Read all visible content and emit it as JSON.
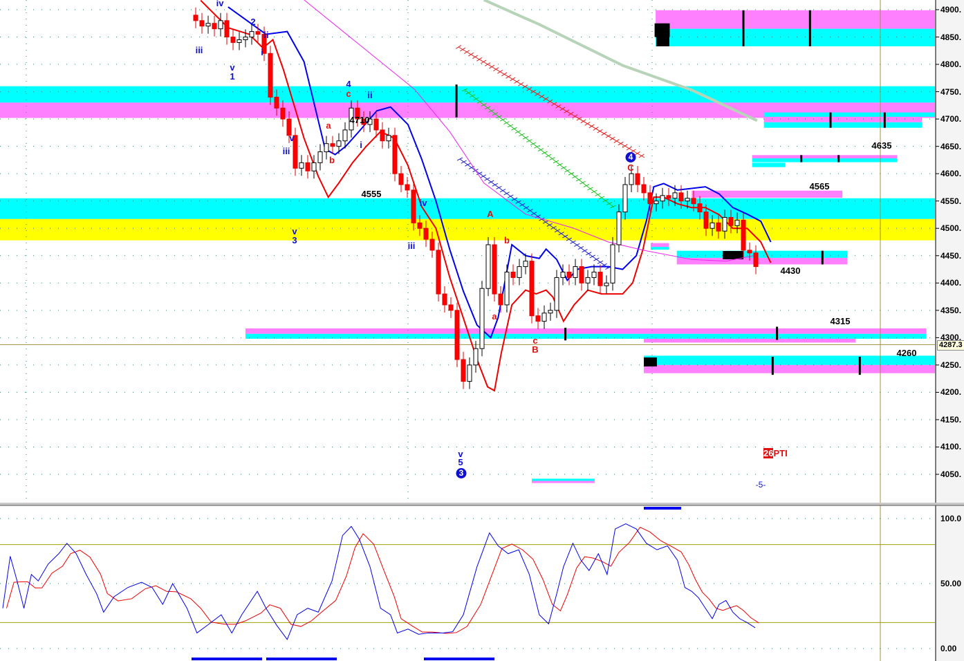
{
  "chart_data": {
    "type": "candlestick",
    "ylim": [
      4000,
      4920
    ],
    "y_ticks": [
      "4900.",
      "4850.",
      "4800.",
      "4750.",
      "4700.",
      "4650.",
      "4600.",
      "4550.",
      "4500.",
      "4450.",
      "4400.",
      "4350.",
      "4300.",
      "4250.",
      "4200.",
      "4150.",
      "4100.",
      "4050."
    ],
    "y_tick_values": [
      4900,
      4850,
      4800,
      4750,
      4700,
      4650,
      4600,
      4550,
      4500,
      4450,
      4400,
      4350,
      4300,
      4250,
      4200,
      4150,
      4100,
      4050
    ],
    "current_price_label": "4287.3",
    "current_price": 4287.3,
    "first_bar": 31,
    "closes": [
      4880,
      4870,
      4875,
      4865,
      4880,
      4850,
      4840,
      4845,
      4850,
      4860,
      4855,
      4820,
      4740,
      4720,
      4700,
      4670,
      4610,
      4620,
      4605,
      4620,
      4640,
      4655,
      4650,
      4660,
      4680,
      4720,
      4700,
      4690,
      4700,
      4680,
      4660,
      4670,
      4600,
      4580,
      4570,
      4510,
      4500,
      4480,
      4460,
      4380,
      4360,
      4350,
      4260,
      4220,
      4250,
      4280,
      4390,
      4470,
      4380,
      4360,
      4420,
      4410,
      4430,
      4440,
      4340,
      4330,
      4345,
      4350,
      4410,
      4420,
      4410,
      4430,
      4400,
      4410,
      4420,
      4395,
      4400,
      4470,
      4530,
      4580,
      4600,
      4580,
      4565,
      4545,
      4550,
      4560,
      4555,
      4565,
      4550,
      4555,
      4545,
      4530,
      4500,
      4510,
      4495,
      4520,
      4505,
      4515,
      4460,
      4455,
      4430
    ],
    "lines": [
      {
        "color": "#0000ee",
        "points": [
          [
            36.2,
            4905
          ],
          [
            42.3,
            4855
          ],
          [
            45.7,
            4860
          ],
          [
            48.4,
            4805
          ],
          [
            51.8,
            4645
          ],
          [
            53.4,
            4635
          ],
          [
            55.1,
            4650
          ],
          [
            57.3,
            4678
          ],
          [
            60.1,
            4715
          ],
          [
            62.3,
            4722
          ],
          [
            65.1,
            4690
          ],
          [
            67.3,
            4627
          ],
          [
            69.6,
            4550
          ],
          [
            71.8,
            4462
          ],
          [
            74,
            4385
          ],
          [
            76.2,
            4323
          ],
          [
            78.4,
            4300
          ],
          [
            79.6,
            4337
          ],
          [
            81.8,
            4470
          ],
          [
            84,
            4450
          ],
          [
            86.2,
            4445
          ],
          [
            87.3,
            4462
          ],
          [
            89,
            4443
          ],
          [
            90.7,
            4405
          ],
          [
            92.3,
            4425
          ],
          [
            94.6,
            4430
          ],
          [
            97.3,
            4430
          ],
          [
            99.6,
            4425
          ],
          [
            101.8,
            4450
          ],
          [
            103.4,
            4513
          ],
          [
            104.6,
            4576
          ],
          [
            106.2,
            4582
          ],
          [
            108.4,
            4570
          ],
          [
            110.7,
            4573
          ],
          [
            112.9,
            4576
          ],
          [
            115.1,
            4563
          ],
          [
            117.3,
            4538
          ],
          [
            119.6,
            4526
          ],
          [
            121.8,
            4513
          ],
          [
            123.4,
            4475
          ]
        ]
      },
      {
        "color": "#ee0000",
        "points": [
          [
            31.8,
            4917
          ],
          [
            36.2,
            4867
          ],
          [
            39.6,
            4855
          ],
          [
            41.8,
            4830
          ],
          [
            43.4,
            4845
          ],
          [
            45.1,
            4790
          ],
          [
            48.4,
            4665
          ],
          [
            50.7,
            4595
          ],
          [
            52.3,
            4557
          ],
          [
            54,
            4583
          ],
          [
            56.2,
            4620
          ],
          [
            58.4,
            4650
          ],
          [
            60.7,
            4677
          ],
          [
            62.9,
            4665
          ],
          [
            65.1,
            4615
          ],
          [
            67.3,
            4540
          ],
          [
            69.6,
            4500
          ],
          [
            71.8,
            4411
          ],
          [
            74,
            4336
          ],
          [
            76.2,
            4260
          ],
          [
            77.9,
            4210
          ],
          [
            79,
            4203
          ],
          [
            80.1,
            4272
          ],
          [
            81.8,
            4360
          ],
          [
            84,
            4387
          ],
          [
            85.7,
            4380
          ],
          [
            87.3,
            4387
          ],
          [
            88.4,
            4374
          ],
          [
            90.1,
            4330
          ],
          [
            91.8,
            4360
          ],
          [
            94,
            4387
          ],
          [
            96.2,
            4380
          ],
          [
            99.6,
            4380
          ],
          [
            101.2,
            4400
          ],
          [
            102.9,
            4463
          ],
          [
            104.6,
            4557
          ],
          [
            106.2,
            4557
          ],
          [
            108.4,
            4545
          ],
          [
            110.7,
            4538
          ],
          [
            112.9,
            4538
          ],
          [
            115.1,
            4525
          ],
          [
            117.3,
            4500
          ],
          [
            119.6,
            4500
          ],
          [
            121.8,
            4475
          ],
          [
            123.4,
            4437
          ]
        ]
      },
      {
        "color": "#ee22ee",
        "points": [
          [
            48.4,
            4918
          ],
          [
            66.2,
            4754
          ],
          [
            71.8,
            4677
          ],
          [
            77.3,
            4583
          ],
          [
            84,
            4526
          ],
          [
            91.8,
            4500
          ],
          [
            97.3,
            4475
          ],
          [
            102.9,
            4460
          ],
          [
            110.7,
            4443
          ],
          [
            116.2,
            4440
          ],
          [
            120.7,
            4450
          ]
        ]
      },
      {
        "color": "#b8d4b8",
        "points": [
          [
            77.3,
            4918
          ],
          [
            86.2,
            4873
          ],
          [
            99.6,
            4798
          ],
          [
            110.7,
            4753
          ],
          [
            121.2,
            4697
          ]
        ]
      }
    ],
    "zones": [
      {
        "from": -1,
        "to": 150,
        "low": 4730,
        "high": 4760,
        "color": "#00ffff"
      },
      {
        "from": -1,
        "to": 150,
        "low": 4702,
        "high": 4730,
        "color": "#ff80ff"
      },
      {
        "from": -1,
        "to": 150,
        "low": 4517,
        "high": 4555,
        "color": "#00ffff"
      },
      {
        "from": -1,
        "to": 150,
        "low": 4478,
        "high": 4517,
        "color": "#ffff00"
      },
      {
        "from": 104.9,
        "to": 149.8,
        "low": 4865,
        "high": 4899,
        "color": "#ff80ff"
      },
      {
        "from": 104.9,
        "to": 149.8,
        "low": 4833,
        "high": 4865,
        "color": "#00ffff"
      },
      {
        "from": 122.3,
        "to": 149.8,
        "low": 4704,
        "high": 4712,
        "color": "#00ffff"
      },
      {
        "from": 122.3,
        "to": 147.7,
        "low": 4694,
        "high": 4704,
        "color": "#ff80ff"
      },
      {
        "from": 122.3,
        "to": 147.7,
        "low": 4684,
        "high": 4694,
        "color": "#00ffff"
      },
      {
        "from": 120.4,
        "to": 143.7,
        "low": 4628,
        "high": 4634,
        "color": "#ff80ff"
      },
      {
        "from": 120.4,
        "to": 143.7,
        "low": 4621,
        "high": 4628,
        "color": "#00ffff"
      },
      {
        "from": 120.4,
        "to": 125.7,
        "low": 4612,
        "high": 4620,
        "color": "#00ffff"
      },
      {
        "from": 110.7,
        "to": 134.9,
        "low": 4556,
        "high": 4569,
        "color": "#ff80ff"
      },
      {
        "from": 104.1,
        "to": 107,
        "low": 4466,
        "high": 4473,
        "color": "#ff80ff"
      },
      {
        "from": 104.1,
        "to": 107,
        "low": 4461,
        "high": 4466,
        "color": "#00ffff"
      },
      {
        "from": 108.3,
        "to": 135.7,
        "low": 4446,
        "high": 4459,
        "color": "#00ffff"
      },
      {
        "from": 108.3,
        "to": 135.7,
        "low": 4434,
        "high": 4446,
        "color": "#ff80ff"
      },
      {
        "from": 39,
        "to": 148.4,
        "low": 4307,
        "high": 4317,
        "color": "#ff80ff"
      },
      {
        "from": 39,
        "to": 148.4,
        "low": 4298,
        "high": 4307,
        "color": "#00ffff"
      },
      {
        "from": 103,
        "to": 137,
        "low": 4291,
        "high": 4298,
        "color": "#ff80ff"
      },
      {
        "from": 103,
        "to": 149.8,
        "low": 4250,
        "high": 4267,
        "color": "#00ffff"
      },
      {
        "from": 103,
        "to": 149.8,
        "low": 4235,
        "high": 4250,
        "color": "#ff80ff"
      },
      {
        "from": 85,
        "to": 95.1,
        "low": 4038,
        "high": 4042,
        "color": "#00ffff"
      },
      {
        "from": 85,
        "to": 95.1,
        "low": 4034,
        "high": 4038,
        "color": "#ff80ff"
      }
    ],
    "osc": {
      "ylim": [
        0,
        100
      ],
      "y_ticks": [
        "100.0",
        "50.00",
        "0.00"
      ],
      "y_tick_values": [
        100,
        50,
        0
      ],
      "levels": [
        80,
        20
      ],
      "points": [
        [
          0,
          31
        ],
        [
          1.2,
          71
        ],
        [
          2.3,
          52
        ],
        [
          3.4,
          31
        ],
        [
          4.6,
          57
        ],
        [
          5.7,
          52
        ],
        [
          7.3,
          65
        ],
        [
          9,
          73
        ],
        [
          10.3,
          81
        ],
        [
          11.8,
          73
        ],
        [
          13.4,
          57
        ],
        [
          15.1,
          42
        ],
        [
          16.2,
          28
        ],
        [
          17.9,
          40
        ],
        [
          20.1,
          47
        ],
        [
          22.3,
          51
        ],
        [
          24,
          47
        ],
        [
          25.7,
          34
        ],
        [
          27.3,
          50
        ],
        [
          29.6,
          31
        ],
        [
          31.2,
          12
        ],
        [
          32.9,
          18
        ],
        [
          35.1,
          26
        ],
        [
          36.8,
          12
        ],
        [
          38.4,
          26
        ],
        [
          40.9,
          44
        ],
        [
          42.3,
          31
        ],
        [
          44,
          18
        ],
        [
          45.7,
          7
        ],
        [
          47.3,
          26
        ],
        [
          49,
          31
        ],
        [
          50.7,
          28
        ],
        [
          52.9,
          52
        ],
        [
          54.6,
          87
        ],
        [
          56,
          94
        ],
        [
          57.3,
          84
        ],
        [
          59,
          63
        ],
        [
          60.7,
          31
        ],
        [
          62.3,
          26
        ],
        [
          63.4,
          12
        ],
        [
          65.1,
          15
        ],
        [
          66.8,
          11
        ],
        [
          68.4,
          12
        ],
        [
          70.7,
          12
        ],
        [
          72.3,
          13
        ],
        [
          74,
          26
        ],
        [
          76.2,
          63
        ],
        [
          78.2,
          89
        ],
        [
          79.6,
          79
        ],
        [
          81.2,
          73
        ],
        [
          82.9,
          76
        ],
        [
          84.6,
          57
        ],
        [
          86.2,
          26
        ],
        [
          87.7,
          19
        ],
        [
          89,
          42
        ],
        [
          90.1,
          63
        ],
        [
          91.6,
          81
        ],
        [
          92.9,
          68
        ],
        [
          94.2,
          60
        ],
        [
          95.7,
          73
        ],
        [
          97.1,
          57
        ],
        [
          98.4,
          92
        ],
        [
          100.1,
          96
        ],
        [
          101.8,
          92
        ],
        [
          103.4,
          81
        ],
        [
          105.1,
          76
        ],
        [
          106.8,
          79
        ],
        [
          108.4,
          68
        ],
        [
          109.6,
          47
        ],
        [
          110.7,
          44
        ],
        [
          111.8,
          39
        ],
        [
          112.9,
          31
        ],
        [
          114,
          23
        ],
        [
          115.1,
          34
        ],
        [
          116.2,
          37
        ],
        [
          117.3,
          28
        ],
        [
          118.4,
          23
        ],
        [
          119.6,
          20
        ],
        [
          120.9,
          16
        ]
      ]
    }
  },
  "annotations": {
    "w_iii_1": "iii",
    "w_iv_1": "iv",
    "w_v_1": "v",
    "w_1": "1",
    "w_2": "2",
    "w_ii_1": "ii",
    "w_i_1": "i",
    "w_v_2": "v",
    "w_iii_2": "iii",
    "w_v_3": "v",
    "w_3": "3",
    "w_4": "4",
    "w_c_1": "c",
    "w_ii_2": "ii",
    "w_a_1": "a",
    "w_b_1": "b",
    "w_i_2": "i",
    "p4710": "4710",
    "p4555": "4555",
    "w_iv_2": "iv",
    "w_iii_3": "iii",
    "w_A": "A",
    "w_b_2": "b",
    "w_a_2": "a",
    "w_c_2": "c",
    "w_B": "B",
    "w_v_4": "v",
    "w_5": "5",
    "circle_3": "3",
    "circle_4": "4",
    "w_C": "C",
    "p4635": "4635",
    "p4565": "4565",
    "p4430": "4430",
    "p4315": "4315",
    "p4260": "4260",
    "pti_num": "26",
    "pti_text": "PTI",
    "minus5": "-5-"
  },
  "colors": {
    "up": "#ffffff",
    "down": "#ff0000",
    "cyan_zone": "#00ffff",
    "magenta_zone": "#ff80ff",
    "yellow_zone": "#ffff00",
    "osc_fast": "#0000ee",
    "osc_slow": "#ee0000",
    "level_line": "#a0a000"
  }
}
